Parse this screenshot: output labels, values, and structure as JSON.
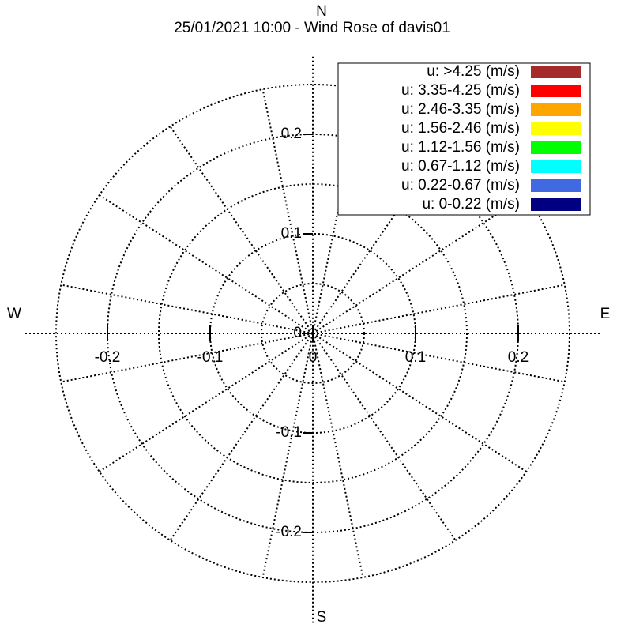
{
  "chart_data": {
    "type": "windrose",
    "title": "25/01/2021 10:00 - Wind Rose of davis01",
    "directions": {
      "north": "N",
      "south": "S",
      "west": "W",
      "east": "E"
    },
    "sectors": 16,
    "rgrid": [
      0.05,
      0.1,
      0.15,
      0.2,
      0.25
    ],
    "xlim": [
      -0.28,
      0.28
    ],
    "ylim": [
      -0.29,
      0.278
    ],
    "xticks": [
      -0.2,
      -0.1,
      0,
      0.1,
      0.2
    ],
    "yticks": [
      -0.2,
      -0.1,
      0,
      0.1,
      0.2
    ],
    "legend": "upper right",
    "series": [
      {
        "name": "u: >4.25 (m/s)",
        "color": "#a52a2a"
      },
      {
        "name": "u: 3.35-4.25 (m/s)",
        "color": "#ff0000"
      },
      {
        "name": "u: 2.46-3.35 (m/s)",
        "color": "#ffa500"
      },
      {
        "name": "u: 1.56-2.46 (m/s)",
        "color": "#ffff00"
      },
      {
        "name": "u: 1.12-1.56 (m/s)",
        "color": "#00ff00"
      },
      {
        "name": "u: 0.67-1.12 (m/s)",
        "color": "#00ffff"
      },
      {
        "name": "u: 0.22-0.67 (m/s)",
        "color": "#4169e1"
      },
      {
        "name": "u: 0-0.22 (m/s)",
        "color": "#000080"
      }
    ]
  }
}
